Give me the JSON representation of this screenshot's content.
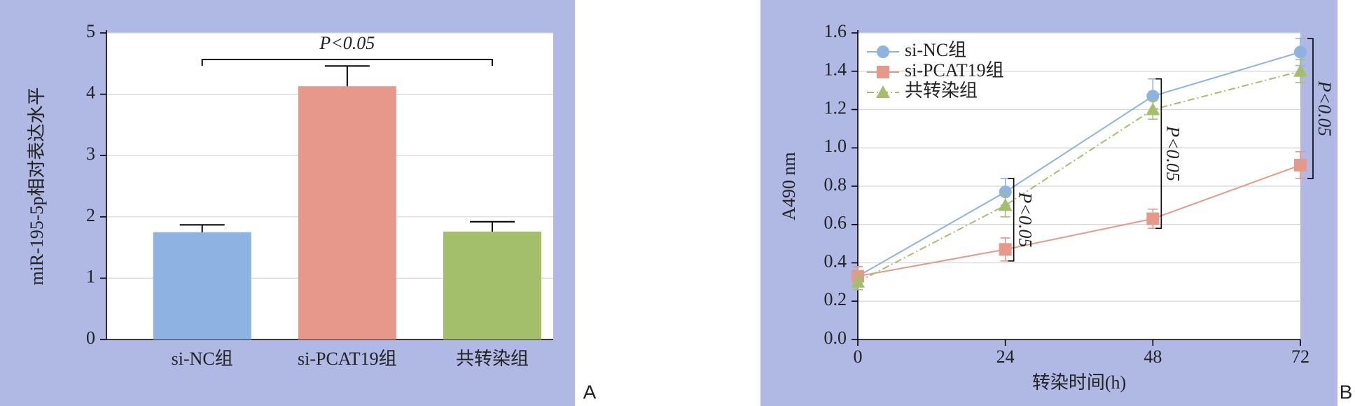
{
  "chart_data": [
    {
      "type": "bar",
      "panel_label": "A",
      "ylabel": "miR-195-5p相对表达水平",
      "categories": [
        "si-NC组",
        "si-PCAT19组",
        "共转染组"
      ],
      "values": [
        1.75,
        4.13,
        1.76
      ],
      "errors": [
        0.12,
        0.33,
        0.16
      ],
      "colors": [
        "#8db3e2",
        "#e6988a",
        "#a3bf6c"
      ],
      "ylim": [
        0,
        5
      ],
      "yticks": [
        0,
        1,
        2,
        3,
        4,
        5
      ],
      "grid": true,
      "annotation": "P<0.05"
    },
    {
      "type": "line",
      "panel_label": "B",
      "xlabel": "转染时间(h)",
      "ylabel": "A490 nm",
      "x": [
        0,
        24,
        48,
        72
      ],
      "xlim": [
        0,
        72
      ],
      "xticks": [
        0,
        24,
        48,
        72
      ],
      "ylim": [
        0,
        1.6
      ],
      "yticks": [
        {
          "value": 0,
          "label": "0.0"
        },
        0.2,
        0.4,
        0.6,
        0.8,
        {
          "value": 1,
          "label": "1.0"
        },
        1.2,
        1.4,
        1.6
      ],
      "grid": true,
      "legend": "upper left",
      "series": [
        {
          "name": "si-NC组",
          "color": "#8db3e2",
          "marker": "circle",
          "dash": "solid",
          "values": [
            0.33,
            0.77,
            1.27,
            1.5
          ],
          "errors": [
            0.05,
            0.07,
            0.09,
            0.07
          ]
        },
        {
          "name": "si-PCAT19组",
          "color": "#e6988a",
          "marker": "square",
          "dash": "solid",
          "values": [
            0.33,
            0.47,
            0.63,
            0.91
          ],
          "errors": [
            0.05,
            0.06,
            0.05,
            0.07
          ]
        },
        {
          "name": "共转染组",
          "color": "#a3bf6c",
          "marker": "triangle",
          "dash": "dashdot",
          "values": [
            0.3,
            0.7,
            1.2,
            1.4
          ],
          "errors": [
            0.04,
            0.06,
            0.05,
            0.06
          ]
        }
      ],
      "annotations": [
        "P<0.05",
        "P<0.05",
        "P<0.05"
      ]
    }
  ]
}
